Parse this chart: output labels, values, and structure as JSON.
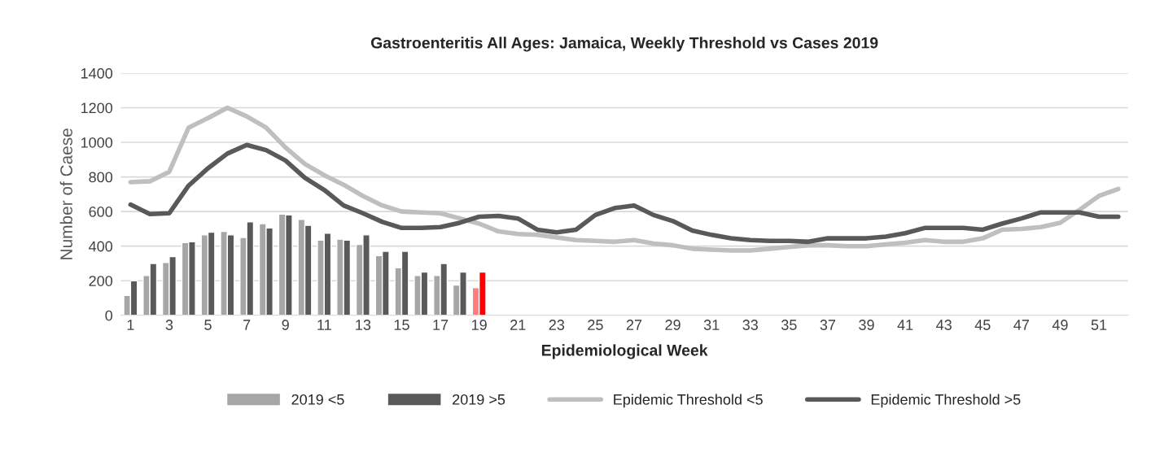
{
  "chart_data": {
    "type": "bar",
    "title": "Gastroenteritis All Ages: Jamaica, Weekly Threshold vs Cases 2019",
    "xlabel": "Epidemiological Week",
    "ylabel": "Number of Caese",
    "categories": [
      "1",
      null,
      "3",
      null,
      "5",
      null,
      "7",
      null,
      "9",
      null,
      "11",
      null,
      "13",
      null,
      "15",
      null,
      "17",
      null,
      "19",
      null,
      "21",
      null,
      "23",
      null,
      "25",
      null,
      "27",
      null,
      "29",
      null,
      "31",
      null,
      "33",
      null,
      "35",
      null,
      "37",
      null,
      "39",
      null,
      "41",
      null,
      "43",
      null,
      "45",
      null,
      "47",
      null,
      "49",
      null,
      "51",
      null
    ],
    "ylim": [
      0,
      1400
    ],
    "yticks": [
      0,
      200,
      400,
      600,
      800,
      1000,
      1200,
      1400
    ],
    "grid": "y",
    "legend": "bottom",
    "series": [
      {
        "name": "2019 <5",
        "color": "#a6a6a6",
        "colors": [
          "#a6a6a6",
          "#a6a6a6",
          "#a6a6a6",
          "#a6a6a6",
          "#a6a6a6",
          "#a6a6a6",
          "#a6a6a6",
          "#a6a6a6",
          "#a6a6a6",
          "#a6a6a6",
          "#a6a6a6",
          "#a6a6a6",
          "#a6a6a6",
          "#a6a6a6",
          "#a6a6a6",
          "#a6a6a6",
          "#a6a6a6",
          "#a6a6a6",
          "#ff7f7f",
          null,
          null,
          null,
          null,
          null,
          null,
          null,
          null,
          null,
          null,
          null,
          null,
          null,
          null,
          null,
          null,
          null,
          null,
          null,
          null,
          null,
          null,
          null,
          null,
          null,
          null,
          null,
          null,
          null,
          null,
          null,
          null,
          null
        ],
        "values": [
          115,
          230,
          305,
          420,
          465,
          485,
          450,
          530,
          585,
          555,
          435,
          440,
          410,
          345,
          275,
          230,
          230,
          175,
          160,
          null,
          null,
          null,
          null,
          null,
          null,
          null,
          null,
          null,
          null,
          null,
          null,
          null,
          null,
          null,
          null,
          null,
          null,
          null,
          null,
          null,
          null,
          null,
          null,
          null,
          null,
          null,
          null,
          null,
          null,
          null,
          null,
          null
        ]
      },
      {
        "name": "2019 >5",
        "color": "#595959",
        "colors": [
          "#595959",
          "#595959",
          "#595959",
          "#595959",
          "#595959",
          "#595959",
          "#595959",
          "#595959",
          "#595959",
          "#595959",
          "#595959",
          "#595959",
          "#595959",
          "#595959",
          "#595959",
          "#595959",
          "#595959",
          "#595959",
          "#ff0000",
          null,
          null,
          null,
          null,
          null,
          null,
          null,
          null,
          null,
          null,
          null,
          null,
          null,
          null,
          null,
          null,
          null,
          null,
          null,
          null,
          null,
          null,
          null,
          null,
          null,
          null,
          null,
          null,
          null,
          null,
          null,
          null,
          null
        ],
        "values": [
          200,
          300,
          340,
          425,
          480,
          465,
          540,
          505,
          580,
          520,
          475,
          435,
          465,
          370,
          370,
          250,
          300,
          250,
          250,
          null,
          null,
          null,
          null,
          null,
          null,
          null,
          null,
          null,
          null,
          null,
          null,
          null,
          null,
          null,
          null,
          null,
          null,
          null,
          null,
          null,
          null,
          null,
          null,
          null,
          null,
          null,
          null,
          null,
          null,
          null,
          null,
          null
        ]
      },
      {
        "name": "Epidemic Threshold <5",
        "type": "line",
        "color": "#bfbfbf",
        "values": [
          770,
          775,
          830,
          1085,
          1140,
          1200,
          1150,
          1085,
          970,
          875,
          810,
          755,
          690,
          635,
          600,
          595,
          590,
          560,
          530,
          485,
          470,
          465,
          450,
          435,
          430,
          425,
          435,
          415,
          405,
          385,
          380,
          375,
          375,
          385,
          395,
          405,
          405,
          400,
          400,
          410,
          420,
          435,
          425,
          425,
          445,
          495,
          500,
          510,
          535,
          610,
          690,
          730
        ]
      },
      {
        "name": "Epidemic Threshold >5",
        "type": "line",
        "color": "#595959",
        "values": [
          640,
          585,
          590,
          750,
          850,
          935,
          985,
          955,
          895,
          795,
          725,
          635,
          590,
          540,
          505,
          505,
          510,
          535,
          570,
          575,
          560,
          495,
          480,
          495,
          580,
          620,
          635,
          580,
          545,
          490,
          465,
          445,
          435,
          430,
          430,
          425,
          445,
          445,
          445,
          455,
          475,
          505,
          505,
          505,
          495,
          530,
          560,
          595,
          595,
          595,
          570,
          570
        ]
      }
    ]
  }
}
